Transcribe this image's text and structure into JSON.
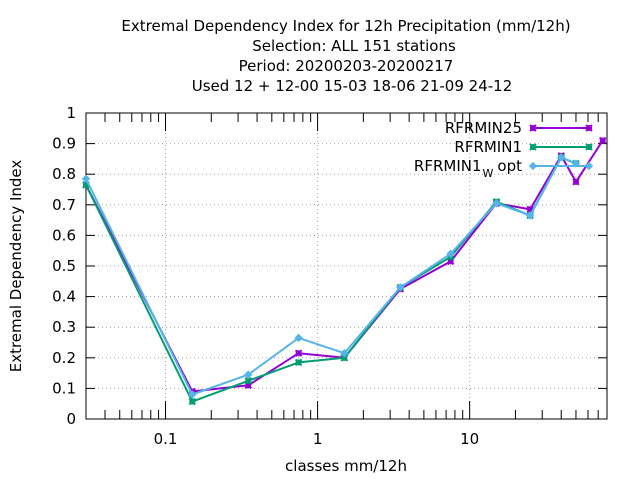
{
  "chart_data": {
    "type": "line",
    "title_lines": [
      "Extremal Dependency Index  for 12h Precipitation (mm/12h)",
      "Selection: ALL    151 stations",
      "Period: 20200203-20200217",
      "Used  12 + 12-00 15-03 18-06 21-09 24-12"
    ],
    "xlabel": "classes mm/12h",
    "ylabel": "Extremal Dependency Index",
    "x_scale": "log",
    "xlim": [
      0.03,
      80
    ],
    "ylim": [
      0,
      1
    ],
    "x_tick_labels": [
      "0.1",
      "1",
      "10"
    ],
    "y_tick_labels": [
      "0",
      "0.1",
      "0.2",
      "0.3",
      "0.4",
      "0.5",
      "0.6",
      "0.7",
      "0.8",
      "0.9",
      "1"
    ],
    "grid": true,
    "legend_position": "top-right",
    "series": [
      {
        "name": "RFRMIN25",
        "legend_main": "RFRMIN25",
        "legend_sub": "",
        "legend_tail": "",
        "color": "#9400d3",
        "marker": "cross",
        "x": [
          0.03,
          0.15,
          0.35,
          0.75,
          1.5,
          3.5,
          7.5,
          15,
          25,
          40,
          50,
          75
        ],
        "y": [
          0.765,
          0.09,
          0.11,
          0.215,
          0.2,
          0.425,
          0.515,
          0.705,
          0.685,
          0.86,
          0.775,
          0.91
        ]
      },
      {
        "name": "RFRMIN1",
        "legend_main": "RFRMIN1",
        "legend_sub": "",
        "legend_tail": "",
        "color": "#009e73",
        "marker": "cross",
        "x": [
          0.03,
          0.15,
          0.35,
          0.75,
          1.5,
          3.5,
          7.5,
          15,
          25,
          40,
          50
        ],
        "y": [
          0.765,
          0.057,
          0.125,
          0.185,
          0.2,
          0.43,
          0.53,
          0.71,
          0.665,
          0.855,
          0.835
        ]
      },
      {
        "name": "RFRMIN1 W opt",
        "legend_main": "RFRMIN1",
        "legend_sub": "W",
        "legend_tail": "opt",
        "color": "#56b4e9",
        "marker": "diamond",
        "x": [
          0.03,
          0.15,
          0.35,
          0.75,
          1.5,
          3.5,
          7.5,
          15,
          25,
          40,
          50
        ],
        "y": [
          0.785,
          0.08,
          0.145,
          0.265,
          0.215,
          0.43,
          0.54,
          0.705,
          0.665,
          0.855,
          0.835
        ]
      }
    ]
  }
}
